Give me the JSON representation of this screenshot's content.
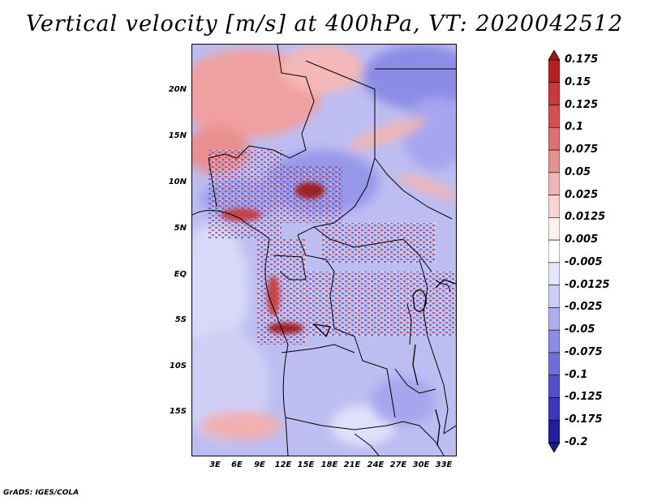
{
  "title": "Vertical velocity [m/s] at 400hPa, VT: 2020042512",
  "credit": "GrADS: IGES/COLA",
  "lat_labels": [
    "20N",
    "15N",
    "10N",
    "5N",
    "EQ",
    "5S",
    "10S",
    "15S"
  ],
  "lon_labels": [
    "3E",
    "6E",
    "9E",
    "12E",
    "15E",
    "18E",
    "21E",
    "24E",
    "27E",
    "30E",
    "33E"
  ],
  "colorbar": {
    "labels": [
      "0.175",
      "0.15",
      "0.125",
      "0.1",
      "0.075",
      "0.05",
      "0.025",
      "0.0125",
      "0.005",
      "-0.005",
      "-0.0125",
      "-0.025",
      "-0.05",
      "-0.075",
      "-0.1",
      "-0.125",
      "-0.175",
      "-0.2"
    ],
    "colors": [
      "#a01616",
      "#b52020",
      "#c83a3a",
      "#d45050",
      "#df7070",
      "#e89090",
      "#f2b5b5",
      "#f8d4d4",
      "#fdf0f0",
      "#ffffff",
      "#e6e6fb",
      "#ccccf5",
      "#aeaef0",
      "#8c8ce6",
      "#6e6edc",
      "#5050cc",
      "#3838b8",
      "#2020a0",
      "#1a1a8c"
    ]
  }
}
